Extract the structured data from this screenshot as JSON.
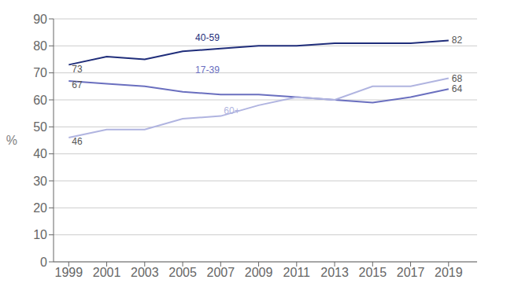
{
  "chart_data": {
    "type": "line",
    "ylabel": "%",
    "x": [
      1999,
      2001,
      2003,
      2005,
      2007,
      2009,
      2011,
      2013,
      2015,
      2017,
      2019
    ],
    "series": [
      {
        "name": "40-59",
        "color": "#1f2d7a",
        "values": [
          73,
          76,
          75,
          78,
          79,
          80,
          80,
          81,
          81,
          81,
          82
        ]
      },
      {
        "name": "17-39",
        "color": "#6a6fbf",
        "values": [
          67,
          66,
          65,
          63,
          62,
          62,
          61,
          60,
          59,
          61,
          64
        ]
      },
      {
        "name": "60+",
        "color": "#b0b4e0",
        "values": [
          46,
          49,
          49,
          53,
          54,
          58,
          61,
          60,
          65,
          65,
          68
        ]
      }
    ],
    "xlim": [
      1998.2,
      2020.5
    ],
    "xticks": [
      1999,
      2001,
      2003,
      2005,
      2007,
      2009,
      2011,
      2013,
      2015,
      2017,
      2019
    ],
    "ylim": [
      0,
      90
    ],
    "yticks": [
      0,
      10,
      20,
      30,
      40,
      50,
      60,
      70,
      80,
      90
    ],
    "grid": true,
    "annotations": [
      {
        "text": "40-59",
        "x": 2005.5,
        "y": 83,
        "color": "#1f2d7a"
      },
      {
        "text": "73",
        "x": 1999,
        "y": 71.5,
        "color": "#555555"
      },
      {
        "text": "82",
        "x": 2019,
        "y": 82,
        "color": "#555555"
      },
      {
        "text": "17-39",
        "x": 2005.5,
        "y": 71,
        "color": "#6a6fbf"
      },
      {
        "text": "67",
        "x": 1999,
        "y": 65.5,
        "color": "#555555"
      },
      {
        "text": "64",
        "x": 2019,
        "y": 64,
        "color": "#555555"
      },
      {
        "text": "60+",
        "x": 2007,
        "y": 56,
        "color": "#b0b4e0"
      },
      {
        "text": "46",
        "x": 1999,
        "y": 44.5,
        "color": "#555555"
      },
      {
        "text": "68",
        "x": 2019,
        "y": 68,
        "color": "#555555"
      }
    ]
  }
}
